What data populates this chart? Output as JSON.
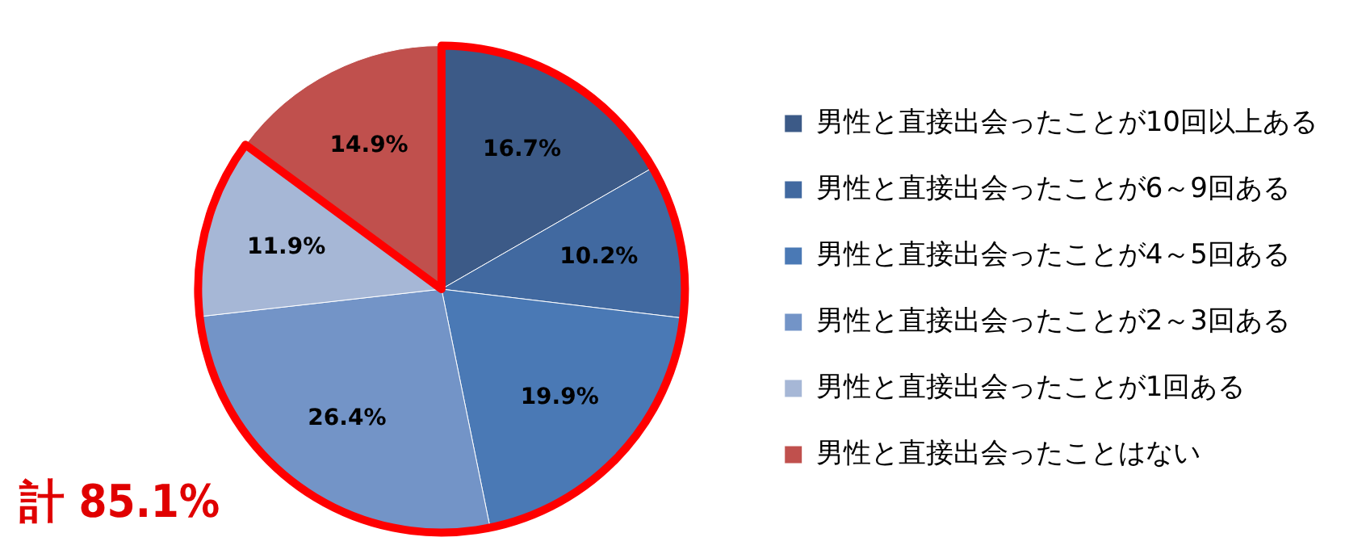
{
  "chart_data": {
    "type": "pie",
    "categories": [
      "男性と直接出会ったことが10回以上ある",
      "男性と直接出会ったことが6～9回ある",
      "男性と直接出会ったことが4～5回ある",
      "男性と直接出会ったことが2～3回ある",
      "男性と直接出会ったことが1回ある",
      "男性と直接出会ったことはない"
    ],
    "values": [
      16.7,
      10.2,
      19.9,
      26.4,
      11.9,
      14.9
    ],
    "value_labels": [
      "16.7%",
      "10.2%",
      "19.9%",
      "26.4%",
      "11.9%",
      "14.9%"
    ],
    "colors": [
      "#3c5a87",
      "#4169a0",
      "#4a79b5",
      "#7394c7",
      "#a6b7d6",
      "#c0504d"
    ],
    "legend": "right",
    "annotations": [
      "計 85.1%"
    ]
  }
}
